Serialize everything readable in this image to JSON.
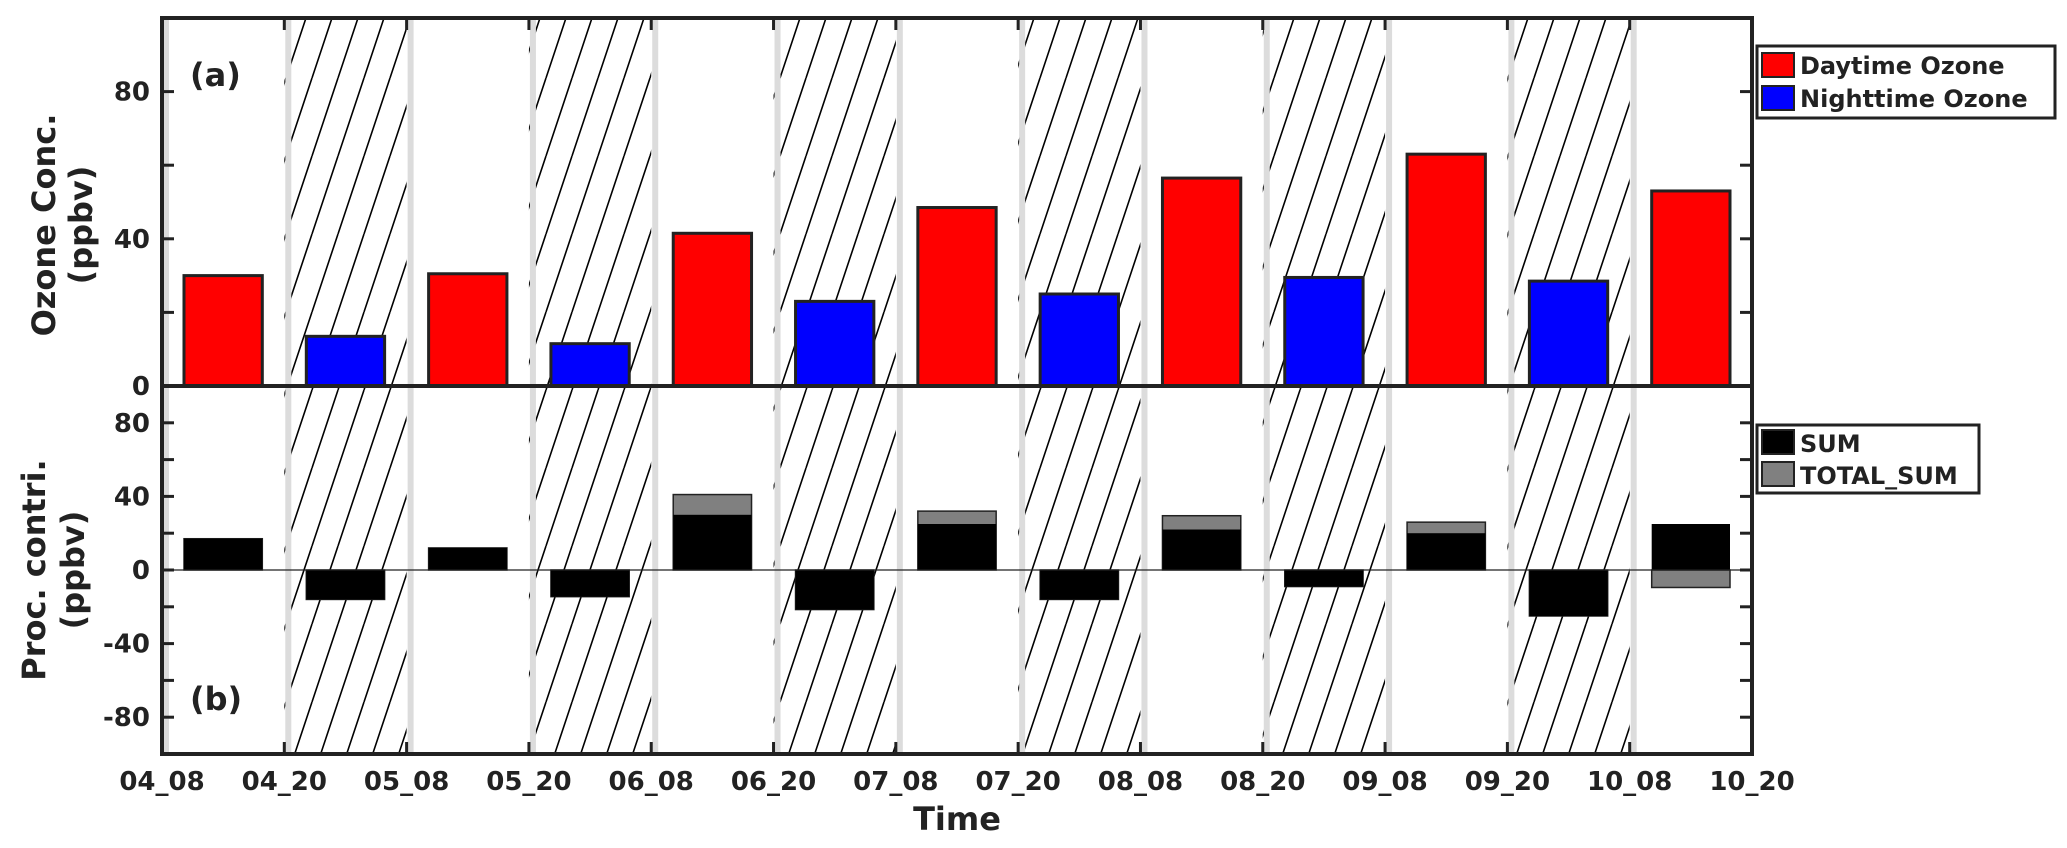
{
  "chart_data": [
    {
      "panel_label": "(a)",
      "type": "bar",
      "ylabel": [
        "Ozone Conc.",
        "(ppbv)"
      ],
      "ylim": [
        0,
        100
      ],
      "yticks": [
        0,
        40,
        80
      ],
      "legend_position": "top-right",
      "series": [
        {
          "name": "Daytime Ozone",
          "color": "#ff0000",
          "values": [
            30,
            null,
            30.5,
            null,
            41.5,
            null,
            48.5,
            null,
            56.5,
            null,
            63,
            null,
            53
          ]
        },
        {
          "name": "Nighttime Ozone",
          "color": "#0000ff",
          "values": [
            null,
            13.5,
            null,
            11.5,
            null,
            23,
            null,
            25,
            null,
            29.5,
            null,
            28.5,
            null
          ]
        }
      ]
    },
    {
      "panel_label": "(b)",
      "type": "bar",
      "ylabel": [
        "Proc. contri.",
        "(ppbv)"
      ],
      "ylim": [
        -100,
        100
      ],
      "yticks": [
        -80,
        -40,
        0,
        40,
        80
      ],
      "legend_position": "top-right",
      "series": [
        {
          "name": "SUM",
          "color": "#000000",
          "values": [
            17,
            -16,
            12,
            -14.5,
            30,
            -21.5,
            25,
            -16,
            22,
            -9,
            20,
            -25,
            25
          ]
        },
        {
          "name": "TOTAL_SUM",
          "color": "#808080",
          "values": [
            17,
            -16,
            12,
            -14.5,
            41,
            -21.5,
            32,
            -16,
            29.5,
            -9,
            26,
            -25,
            -9.5
          ]
        }
      ]
    }
  ],
  "x_axis": {
    "xlabel": "Time",
    "tick_labels": [
      "04_08",
      "04_20",
      "05_08",
      "05_20",
      "06_08",
      "06_20",
      "07_08",
      "07_20",
      "08_08",
      "08_20",
      "09_08",
      "09_20",
      "10_08",
      "10_20"
    ],
    "period_types": [
      "day",
      "night",
      "day",
      "night",
      "day",
      "night",
      "day",
      "night",
      "day",
      "night",
      "day",
      "night",
      "day"
    ],
    "night_pattern": "diagonal hatching",
    "day_pattern": "plain white"
  }
}
